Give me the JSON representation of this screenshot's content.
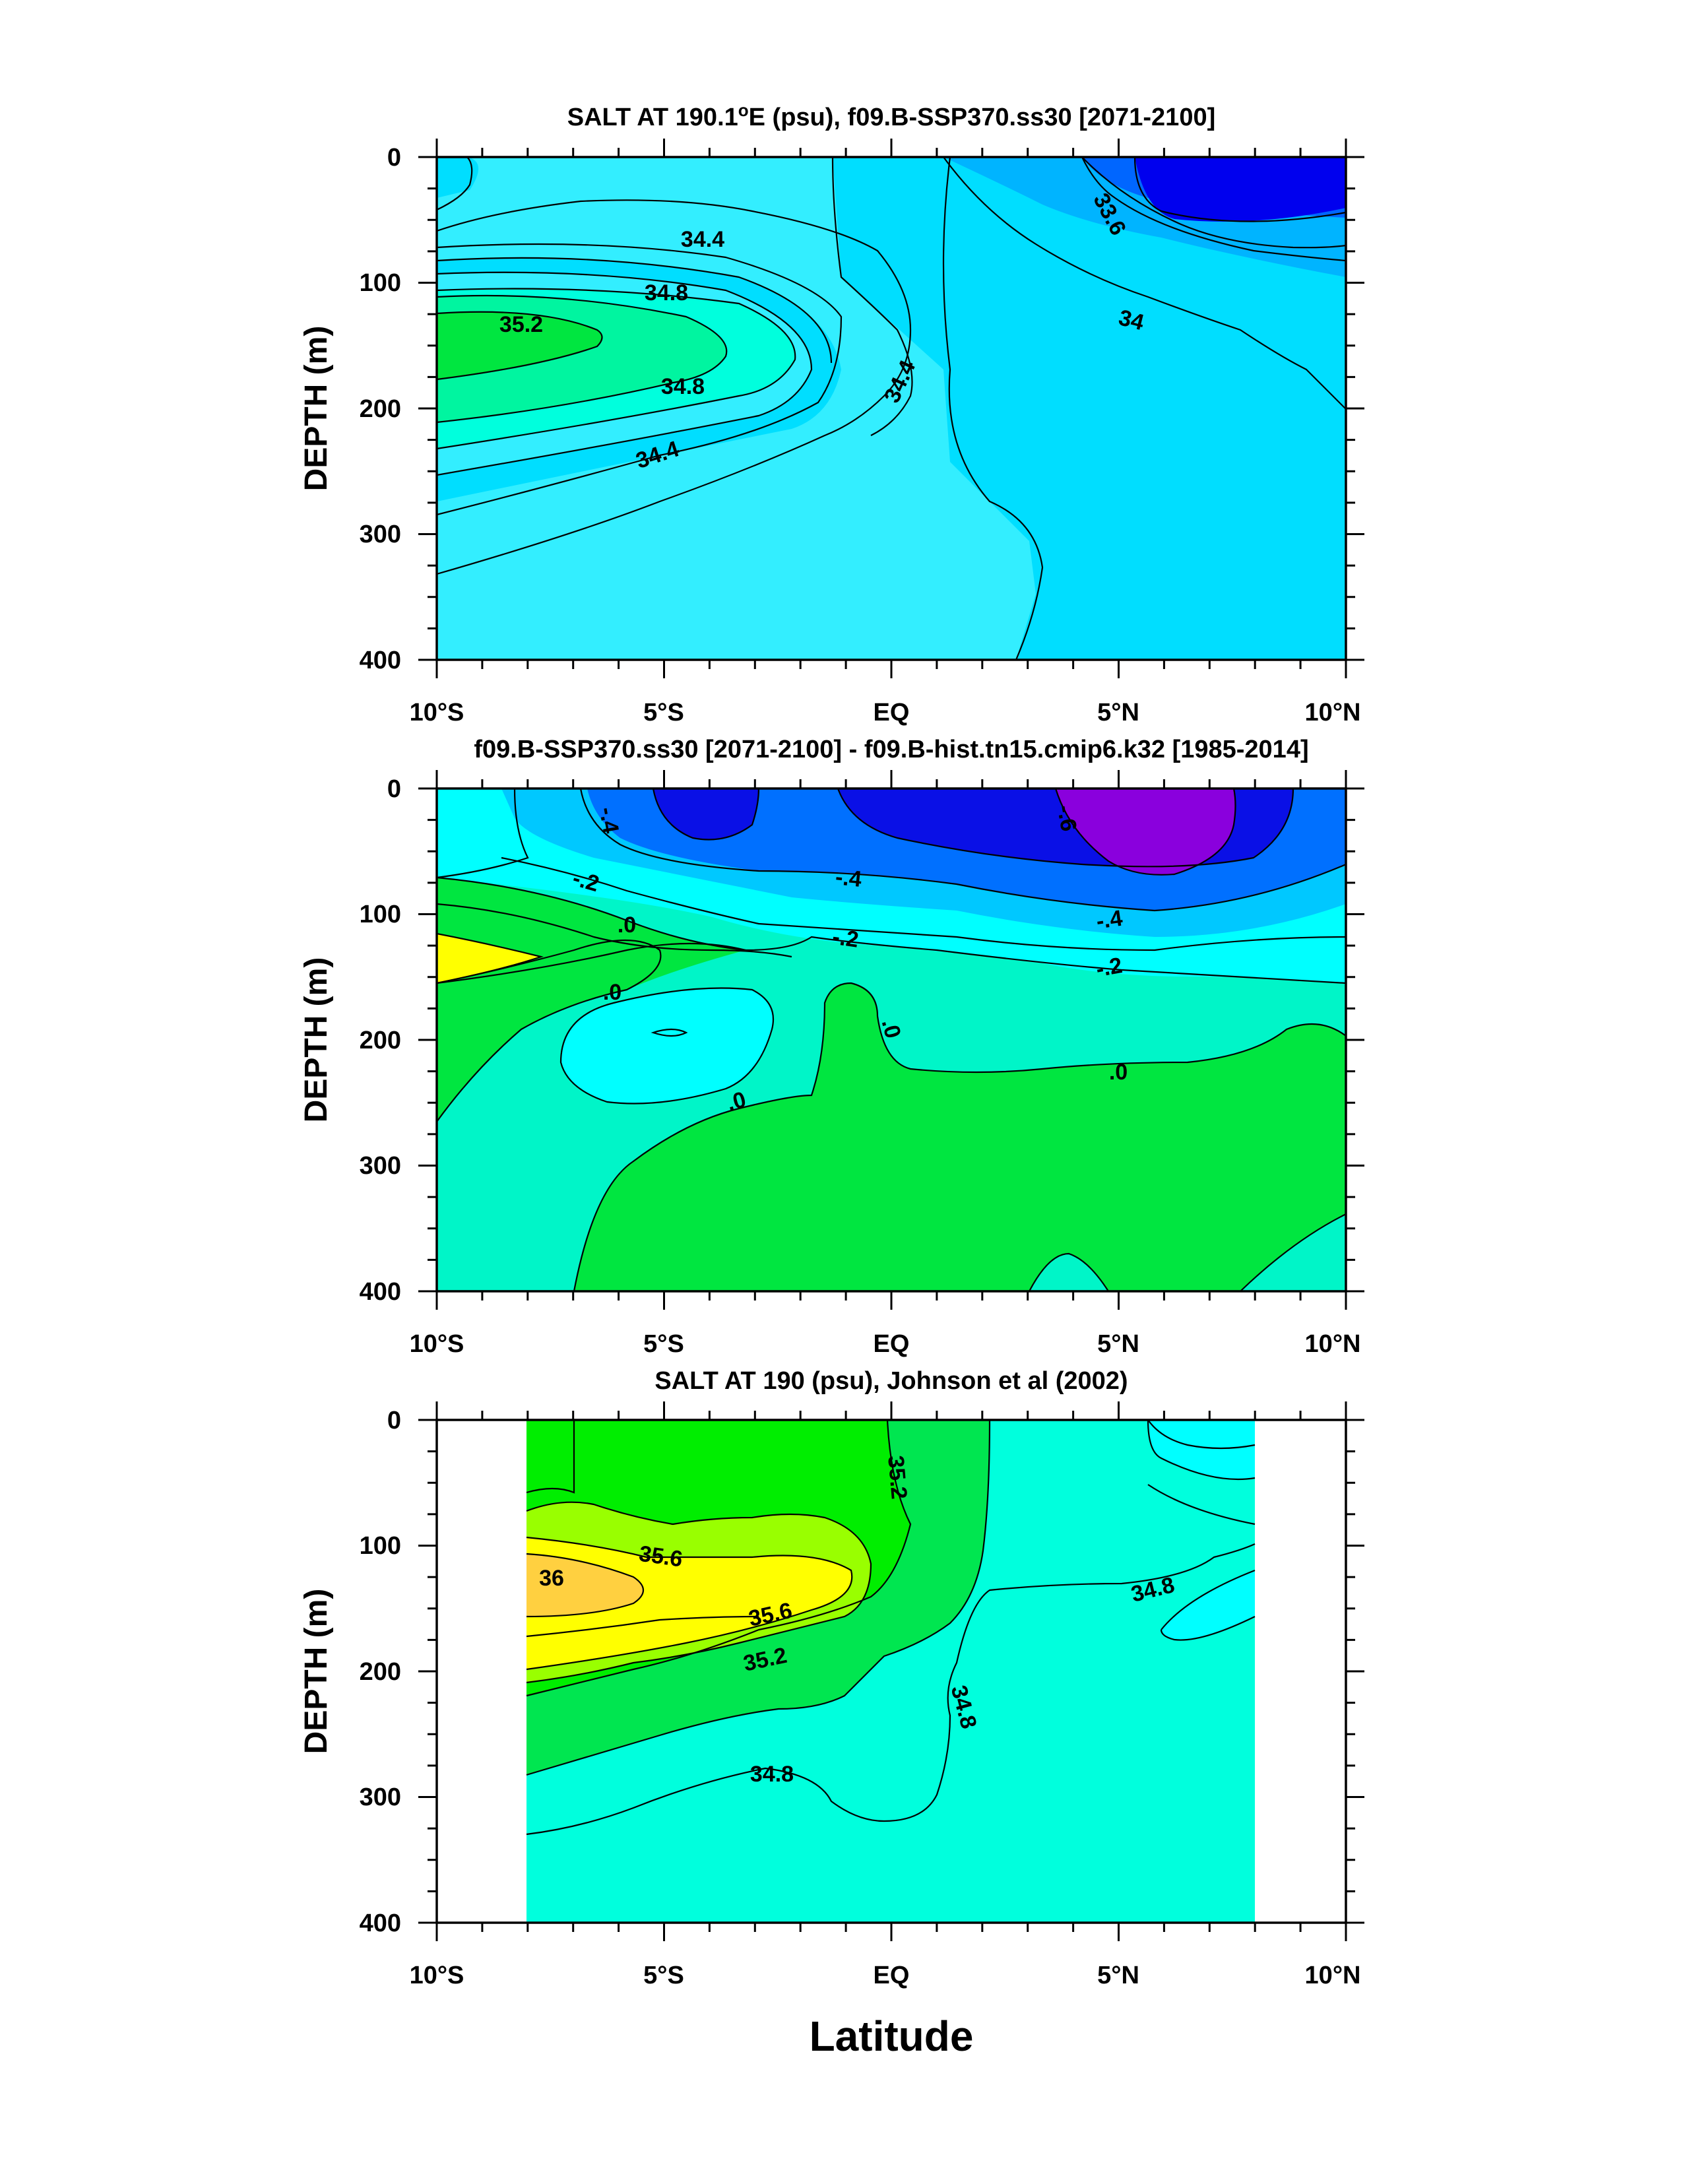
{
  "chart_data": [
    {
      "type": "contour",
      "title": "SALT AT 190.1°E (psu), f09.B-SSP370.ss30 [2071-2100]",
      "title_main": "SALT AT 190.1",
      "title_deg": "o",
      "title_rest": "E (psu), f09.B-SSP370.ss30 [2071-2100]",
      "ylabel": "DEPTH (m)",
      "xlim": [
        -10,
        10
      ],
      "ylim": [
        400,
        0
      ],
      "y_ticks": [
        0,
        100,
        200,
        300,
        400
      ],
      "y_tick_labels": [
        "0",
        "100",
        "200",
        "300",
        "400"
      ],
      "x_ticks": [
        -10,
        -5,
        0,
        5,
        10
      ],
      "x_tick_labels": [
        "10°S",
        "5°S",
        "EQ",
        "5°N",
        "10°N"
      ],
      "contour_labels": [
        "34.4",
        "34.8",
        "35.2",
        "34.8",
        "34.4",
        "34.4",
        "33.6",
        "34"
      ],
      "colors": [
        "#0000ee",
        "#0066ff",
        "#00b4ff",
        "#00deff",
        "#33eeff",
        "#00ffdd",
        "#00f5a0",
        "#00e640"
      ]
    },
    {
      "type": "contour",
      "title": "f09.B-SSP370.ss30 [2071-2100] - f09.B-hist.tn15.cmip6.k32 [1985-2014]",
      "ylabel": "DEPTH (m)",
      "xlim": [
        -10,
        10
      ],
      "ylim": [
        400,
        0
      ],
      "y_ticks": [
        0,
        100,
        200,
        300,
        400
      ],
      "y_tick_labels": [
        "0",
        "100",
        "200",
        "300",
        "400"
      ],
      "x_ticks": [
        -10,
        -5,
        0,
        5,
        10
      ],
      "x_tick_labels": [
        "10°S",
        "5°S",
        "EQ",
        "5°N",
        "10°N"
      ],
      "contour_labels": [
        "-.4",
        "-.6",
        "-.2",
        "-.4",
        ".0",
        "-.4",
        "-.2",
        "-.2",
        ".0",
        ".0",
        ".0",
        ".0"
      ],
      "colors": [
        "#8a00dd",
        "#0a10e6",
        "#0070ff",
        "#00c8ff",
        "#00ffff",
        "#00f5c8",
        "#00e640",
        "#ffff00"
      ]
    },
    {
      "type": "contour",
      "title": "SALT AT 190 (psu), Johnson et al (2002)",
      "ylabel": "DEPTH (m)",
      "xlabel": "Latitude",
      "xlim": [
        -10,
        10
      ],
      "ylim": [
        400,
        0
      ],
      "data_extent_lat": [
        -8,
        8
      ],
      "y_ticks": [
        0,
        100,
        200,
        300,
        400
      ],
      "y_tick_labels": [
        "0",
        "100",
        "200",
        "300",
        "400"
      ],
      "x_ticks": [
        -10,
        -5,
        0,
        5,
        10
      ],
      "x_tick_labels": [
        "10°S",
        "5°S",
        "EQ",
        "5°N",
        "10°N"
      ],
      "contour_labels": [
        "35.2",
        "35.6",
        "36",
        "35.6",
        "35.2",
        "34.8",
        "34.8",
        "34.8"
      ],
      "colors": [
        "#00ffff",
        "#00ffdd",
        "#00e650",
        "#00ee00",
        "#99ff00",
        "#ffff00",
        "#ffd040"
      ]
    }
  ]
}
